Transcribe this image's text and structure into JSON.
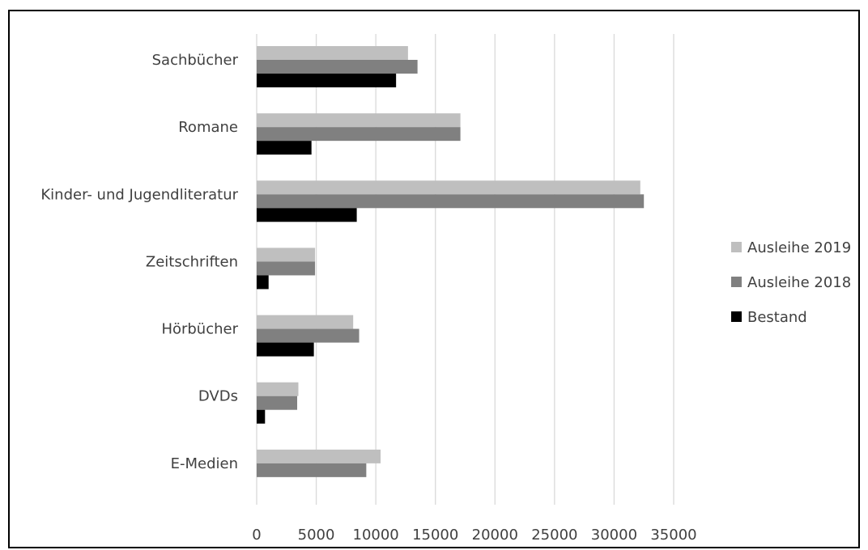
{
  "chart_data": {
    "type": "bar",
    "orientation": "horizontal",
    "categories": [
      "Sachbücher",
      "Romane",
      "Kinder- und Jugendliteratur",
      "Zeitschriften",
      "Hörbücher",
      "DVDs",
      "E-Medien"
    ],
    "series": [
      {
        "name": "Ausleihe 2019",
        "color": "#bfbfbf",
        "values": [
          12700,
          17100,
          32200,
          4900,
          8100,
          3500,
          10400
        ]
      },
      {
        "name": "Ausleihe 2018",
        "color": "#808080",
        "values": [
          13500,
          17100,
          32500,
          4900,
          8600,
          3400,
          9200
        ]
      },
      {
        "name": "Bestand",
        "color": "#000000",
        "values": [
          11700,
          4600,
          8400,
          1000,
          4800,
          700,
          0
        ]
      }
    ],
    "xlim": [
      0,
      35000
    ],
    "x_ticks": [
      0,
      5000,
      10000,
      15000,
      20000,
      25000,
      30000,
      35000
    ],
    "grid": "vertical",
    "legend": "right"
  }
}
